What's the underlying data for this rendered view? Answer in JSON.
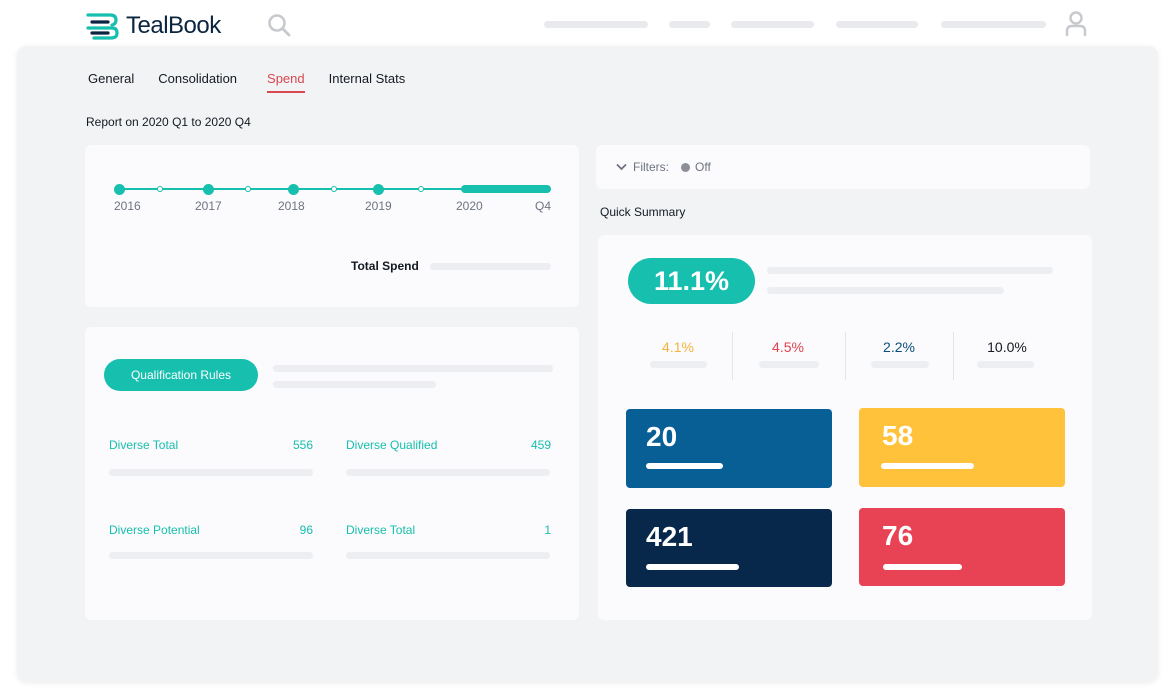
{
  "header": {
    "logo_text": "TealBook",
    "icons": {
      "search": "search-icon",
      "user": "user-icon",
      "logo": "tealbook-logo-icon"
    }
  },
  "tabs": [
    {
      "label": "General",
      "active": false
    },
    {
      "label": "Consolidation",
      "active": false
    },
    {
      "label": "Spend",
      "active": true
    },
    {
      "label": "Internal Stats",
      "active": false
    }
  ],
  "report": {
    "label": "Report on 2020 Q1 to 2020 Q4"
  },
  "timeline": {
    "years": [
      "2016",
      "2017",
      "2018",
      "2019",
      "2020"
    ],
    "end_label": "Q4",
    "total_spend_label": "Total Spend"
  },
  "qualification": {
    "button_label": "Qualification Rules",
    "stats": [
      {
        "label": "Diverse Total",
        "value": "556"
      },
      {
        "label": "Diverse Qualified",
        "value": "459"
      },
      {
        "label": "Diverse Potential",
        "value": "96"
      },
      {
        "label": "Diverse Total",
        "value": "1"
      }
    ]
  },
  "filters": {
    "label": "Filters:",
    "state": "Off",
    "icon": "chevron-down-icon"
  },
  "quick_summary": {
    "title": "Quick Summary",
    "headline": "11.1%",
    "percentages": [
      {
        "value": "4.1%",
        "color": "#f4b63a"
      },
      {
        "value": "4.5%",
        "color": "#e0424f"
      },
      {
        "value": "2.2%",
        "color": "#0b4f7c"
      },
      {
        "value": "10.0%",
        "color": "#141a22"
      }
    ],
    "tiles": [
      {
        "value": "20",
        "color": "#075f96"
      },
      {
        "value": "58",
        "color": "#ffc23a"
      },
      {
        "value": "421",
        "color": "#07284a"
      },
      {
        "value": "76",
        "color": "#e84355"
      }
    ]
  },
  "colors": {
    "accent": "#16bfae",
    "active_tab": "#d9474f"
  }
}
